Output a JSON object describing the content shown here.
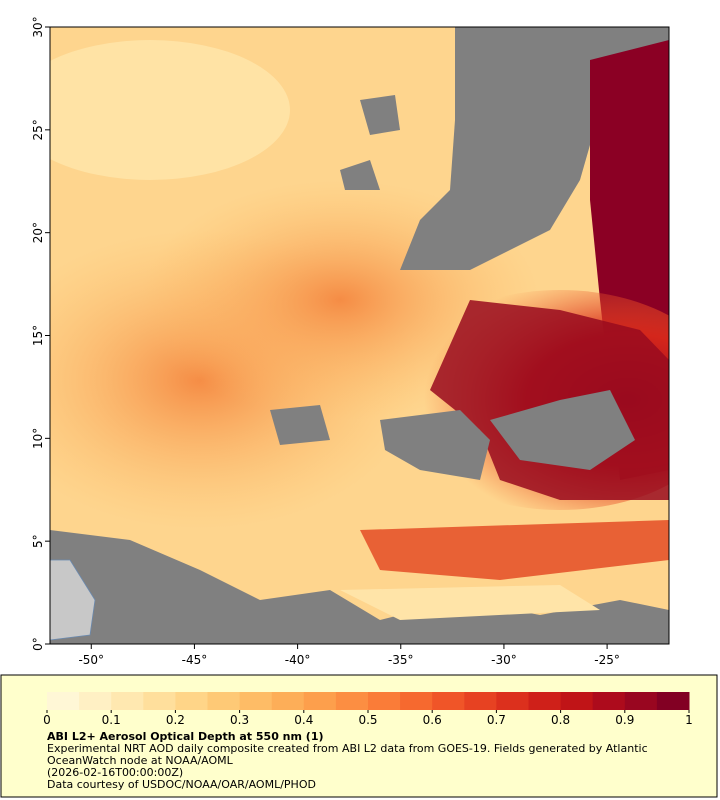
{
  "map": {
    "title": "ABI L2+ Aerosol Optical Depth at 550 nm (1)",
    "description": "Experimental NRT AOD daily composite created from ABI L2 data from GOES-19. Fields generated by Atlantic OceanWatch node at NOAA/AOML",
    "timestamp": "(2026-02-16T00:00:00Z)",
    "credit": "Data courtesy of USDOC/NOAA/OAR/AOML/PHOD",
    "xlim": [
      -52,
      -22
    ],
    "ylim": [
      0,
      30
    ],
    "xticks": [
      {
        "value": -50,
        "label": "-50°"
      },
      {
        "value": -45,
        "label": "-45°"
      },
      {
        "value": -40,
        "label": "-40°"
      },
      {
        "value": -35,
        "label": "-35°"
      },
      {
        "value": -30,
        "label": "-30°"
      },
      {
        "value": -25,
        "label": "-25°"
      }
    ],
    "yticks": [
      {
        "value": 0,
        "label": "0°"
      },
      {
        "value": 5,
        "label": "5°"
      },
      {
        "value": 10,
        "label": "10°"
      },
      {
        "value": 15,
        "label": "15°"
      },
      {
        "value": 20,
        "label": "20°"
      },
      {
        "value": 25,
        "label": "25°"
      },
      {
        "value": 30,
        "label": "30°"
      }
    ],
    "colorbar": {
      "lim": [
        0,
        1
      ],
      "ticks": [
        0,
        0.1,
        0.2,
        0.3,
        0.4,
        0.5,
        0.6,
        0.7,
        0.8,
        0.9,
        1
      ],
      "colors": [
        "#fff7d6",
        "#fff0c4",
        "#ffe8b0",
        "#ffdf9c",
        "#ffd588",
        "#fec976",
        "#febc66",
        "#fdae58",
        "#fd9f4c",
        "#fc8e42",
        "#fa7c38",
        "#f6692f",
        "#f05528",
        "#e74222",
        "#dc301d",
        "#cf2019",
        "#c01417",
        "#ad0b1c",
        "#990620",
        "#820023"
      ]
    }
  }
}
